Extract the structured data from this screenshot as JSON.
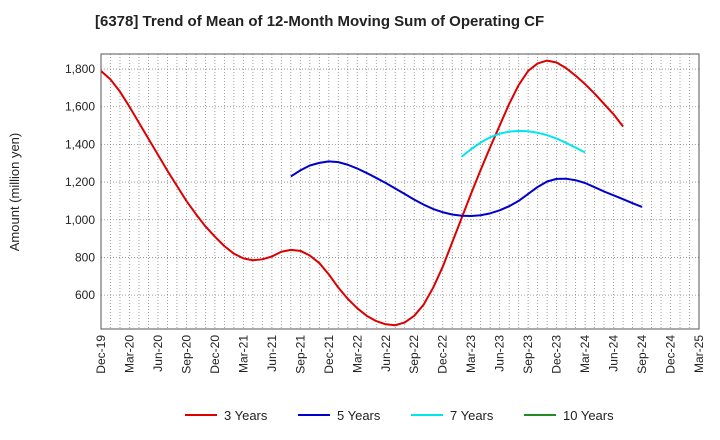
{
  "chart_data": {
    "type": "line",
    "title": "[6378]  Trend of Mean of 12-Month Moving Sum of Operating CF",
    "xlabel": "",
    "ylabel": "Amount (million yen)",
    "ylim": [
      420,
      1880
    ],
    "yticks": [
      600,
      800,
      1000,
      1200,
      1400,
      1600,
      1800
    ],
    "ytick_labels": [
      "600",
      "800",
      "1,000",
      "1,200",
      "1,400",
      "1,600",
      "1,800"
    ],
    "x_categories": [
      "Dec-19",
      "Mar-20",
      "Jun-20",
      "Sep-20",
      "Dec-20",
      "Mar-21",
      "Jun-21",
      "Sep-21",
      "Dec-21",
      "Mar-22",
      "Jun-22",
      "Sep-22",
      "Dec-22",
      "Mar-23",
      "Jun-23",
      "Sep-23",
      "Dec-23",
      "Mar-24",
      "Jun-24",
      "Sep-24",
      "Dec-24",
      "Mar-25"
    ],
    "grid": true,
    "legend_position": "bottom",
    "series": [
      {
        "name": "3 Years",
        "color": "#dd0000",
        "start_index": 0,
        "values": [
          1790,
          1745,
          1680,
          1600,
          1515,
          1430,
          1345,
          1260,
          1180,
          1100,
          1030,
          965,
          910,
          860,
          820,
          795,
          785,
          790,
          805,
          830,
          840,
          835,
          810,
          770,
          710,
          640,
          580,
          530,
          490,
          462,
          445,
          440,
          455,
          490,
          550,
          640,
          750,
          880,
          1010,
          1140,
          1265,
          1385,
          1500,
          1615,
          1715,
          1790,
          1830,
          1845,
          1835,
          1805,
          1765,
          1720,
          1670,
          1615,
          1560,
          1495
        ]
      },
      {
        "name": "5 Years",
        "color": "#0000cc",
        "start_index": 20,
        "values": [
          1230,
          1262,
          1288,
          1302,
          1310,
          1306,
          1292,
          1272,
          1248,
          1222,
          1195,
          1166,
          1137,
          1107,
          1080,
          1057,
          1040,
          1028,
          1021,
          1020,
          1024,
          1034,
          1050,
          1072,
          1100,
          1137,
          1174,
          1203,
          1217,
          1218,
          1210,
          1195,
          1173,
          1150,
          1130,
          1109,
          1088,
          1068
        ]
      },
      {
        "name": "7 Years",
        "color": "#00e5ee",
        "start_index": 38,
        "values": [
          1335,
          1375,
          1410,
          1438,
          1457,
          1468,
          1472,
          1470,
          1462,
          1449,
          1431,
          1408,
          1383,
          1357
        ]
      },
      {
        "name": "10 Years",
        "color": "#228b22",
        "start_index": 0,
        "values": []
      }
    ]
  }
}
